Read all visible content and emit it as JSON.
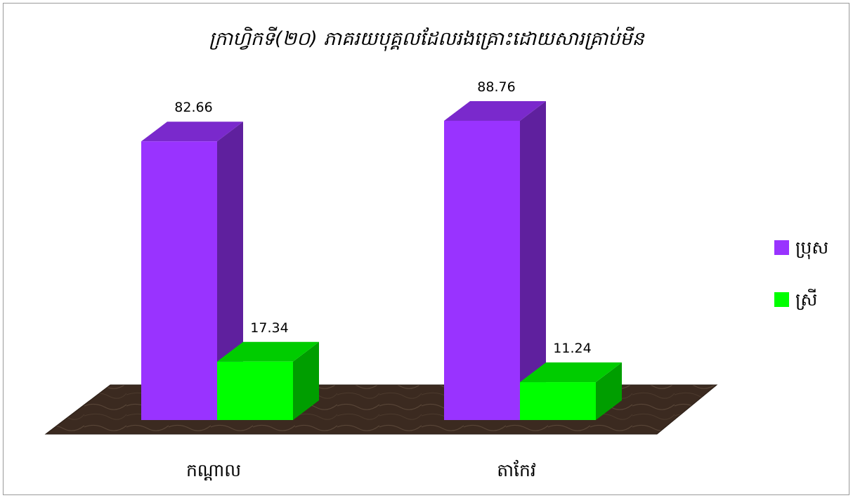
{
  "chart_data": {
    "type": "bar",
    "title": "ក្រាហ្វិកទី(២០) ភាគរយបុគ្គលដែលរងគ្រោះដោយសារគ្រាប់មីន",
    "categories": [
      "កណ្ដាល",
      "តាកែវ"
    ],
    "series": [
      {
        "name": "ប្រុស",
        "values": [
          82.66,
          88.76
        ],
        "color": "#9933ff"
      },
      {
        "name": "ស្រី",
        "values": [
          17.34,
          11.24
        ],
        "color": "#00ff00"
      }
    ],
    "data_labels": [
      [
        "82.66",
        "88.76"
      ],
      [
        "17.34",
        "11.24"
      ]
    ],
    "ylim": [
      0,
      100
    ],
    "grid": false,
    "legend": "right",
    "style": "3d-column",
    "floor_color": "#3b2a20"
  }
}
